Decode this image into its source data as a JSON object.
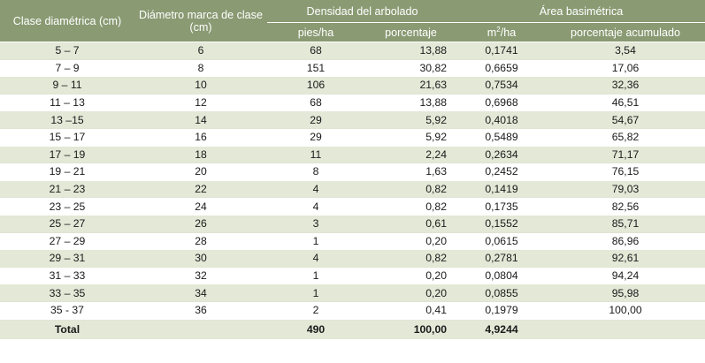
{
  "headers": {
    "clase_diametrica": "Clase diamétrica (cm)",
    "diametro_marca": "Diámetro marca de clase (cm)",
    "densidad": "Densidad del arbolado",
    "area": "Área basimétrica",
    "pies_ha": "pies/ha",
    "porcentaje": "porcentaje",
    "m2_ha_base": "m",
    "m2_ha_sup": "2",
    "m2_ha_tail": "/ha",
    "porcentaje_acumulado": "porcentaje acumulado"
  },
  "rows": [
    {
      "clase": "5 – 7",
      "marca": "6",
      "pies": "68",
      "porc": "13,88",
      "m2": "0,1741",
      "acum": "3,54"
    },
    {
      "clase": "7 – 9",
      "marca": "8",
      "pies": "151",
      "porc": "30,82",
      "m2": "0,6659",
      "acum": "17,06"
    },
    {
      "clase": "9 – 11",
      "marca": "10",
      "pies": "106",
      "porc": "21,63",
      "m2": "0,7534",
      "acum": "32,36"
    },
    {
      "clase": "11 – 13",
      "marca": "12",
      "pies": "68",
      "porc": "13,88",
      "m2": "0,6968",
      "acum": "46,51"
    },
    {
      "clase": "13 –15",
      "marca": "14",
      "pies": "29",
      "porc": "5,92",
      "m2": "0,4018",
      "acum": "54,67"
    },
    {
      "clase": "15 – 17",
      "marca": "16",
      "pies": "29",
      "porc": "5,92",
      "m2": "0,5489",
      "acum": "65,82"
    },
    {
      "clase": "17 – 19",
      "marca": "18",
      "pies": "11",
      "porc": "2,24",
      "m2": "0,2634",
      "acum": "71,17"
    },
    {
      "clase": "19 – 21",
      "marca": "20",
      "pies": "8",
      "porc": "1,63",
      "m2": "0,2452",
      "acum": "76,15"
    },
    {
      "clase": "21 – 23",
      "marca": "22",
      "pies": "4",
      "porc": "0,82",
      "m2": "0,1419",
      "acum": "79,03"
    },
    {
      "clase": "23 – 25",
      "marca": "24",
      "pies": "4",
      "porc": "0,82",
      "m2": "0,1735",
      "acum": "82,56"
    },
    {
      "clase": "25 – 27",
      "marca": "26",
      "pies": "3",
      "porc": "0,61",
      "m2": "0,1552",
      "acum": "85,71"
    },
    {
      "clase": "27 – 29",
      "marca": "28",
      "pies": "1",
      "porc": "0,20",
      "m2": "0,0615",
      "acum": "86,96"
    },
    {
      "clase": "29 – 31",
      "marca": "30",
      "pies": "4",
      "porc": "0,82",
      "m2": "0,2781",
      "acum": "92,61"
    },
    {
      "clase": "31 – 33",
      "marca": "32",
      "pies": "1",
      "porc": "0,20",
      "m2": "0,0804",
      "acum": "94,24"
    },
    {
      "clase": "33 – 35",
      "marca": "34",
      "pies": "1",
      "porc": "0,20",
      "m2": "0,0855",
      "acum": "95,98"
    },
    {
      "clase": "35 - 37",
      "marca": "36",
      "pies": "2",
      "porc": "0,41",
      "m2": "0,1979",
      "acum": "100,00"
    }
  ],
  "total": {
    "label": "Total",
    "marca": "",
    "pies": "490",
    "porc": "100,00",
    "m2": "4,9244",
    "acum": ""
  },
  "colors": {
    "header_bg": "#8a9a73",
    "band_bg": "#e3e8d7",
    "header_text": "#ffffff"
  }
}
